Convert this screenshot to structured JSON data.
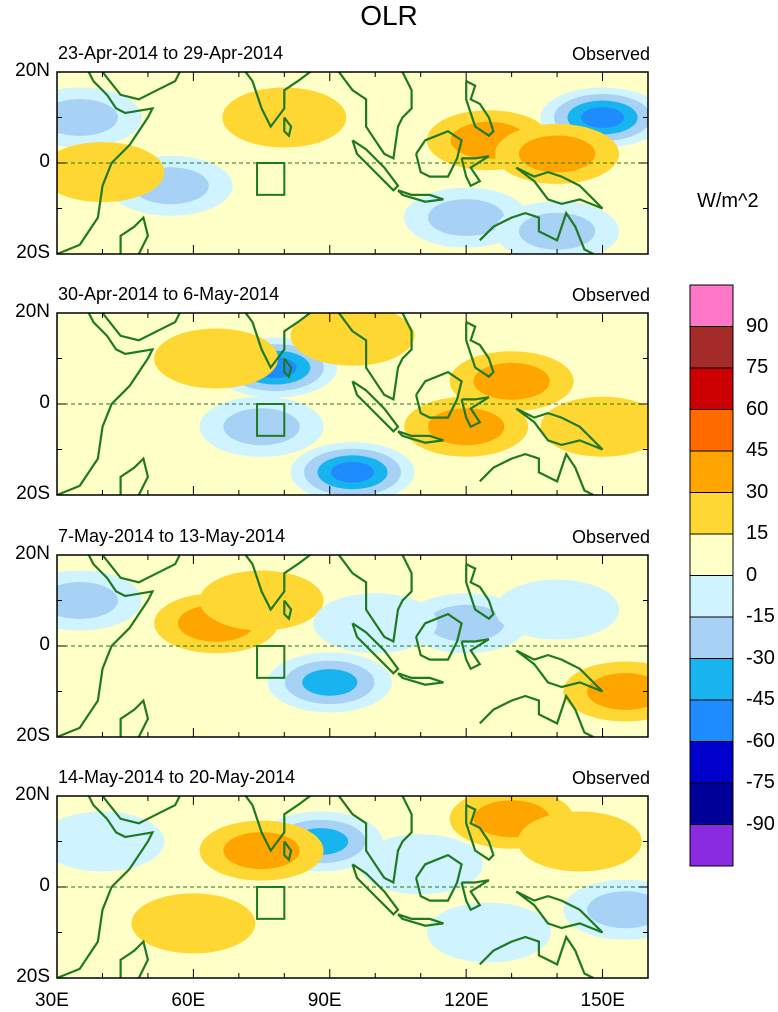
{
  "chart_data": {
    "type": "heatmap",
    "title": "OLR",
    "xlabel": "",
    "ylabel": "",
    "xlim": [
      30,
      160
    ],
    "ylim": [
      -20,
      20
    ],
    "x_ticks": [
      "30E",
      "60E",
      "90E",
      "120E",
      "150E"
    ],
    "y_ticks": [
      "20N",
      "0",
      "20S"
    ],
    "colorbar": {
      "unit": "W/m^2",
      "labels": [
        "90",
        "75",
        "60",
        "45",
        "30",
        "15",
        "0",
        "-15",
        "-30",
        "-45",
        "-60",
        "-75",
        "-90"
      ],
      "colors": [
        "#ff77c8",
        "#a52a2a",
        "#cc0000",
        "#ff6a00",
        "#ffa500",
        "#ffd732",
        "#ffffc8",
        "#cff3ff",
        "#a7d1f5",
        "#18b4f0",
        "#1e8cff",
        "#0000cc",
        "#000099",
        "#8a2be2"
      ]
    },
    "panels": [
      {
        "period": "23-Apr-2014 to 29-Apr-2014",
        "label": "Observed",
        "anomalies": [
          {
            "lon": 150,
            "lat": 10,
            "value": -70
          },
          {
            "lon": 35,
            "lat": 10,
            "value": -40
          },
          {
            "lon": 125,
            "lat": 5,
            "value": 35
          },
          {
            "lon": 140,
            "lat": 2,
            "value": 40
          },
          {
            "lon": 80,
            "lat": 10,
            "value": 15
          },
          {
            "lon": 55,
            "lat": -5,
            "value": -30
          },
          {
            "lon": 120,
            "lat": -12,
            "value": -40
          },
          {
            "lon": 140,
            "lat": -15,
            "value": -30
          },
          {
            "lon": 40,
            "lat": -2,
            "value": 20
          }
        ]
      },
      {
        "period": "30-Apr-2014 to 6-May-2014",
        "label": "Observed",
        "anomalies": [
          {
            "lon": 78,
            "lat": 8,
            "value": -70
          },
          {
            "lon": 95,
            "lat": -15,
            "value": -60
          },
          {
            "lon": 75,
            "lat": -5,
            "value": -30
          },
          {
            "lon": 130,
            "lat": 5,
            "value": 35
          },
          {
            "lon": 120,
            "lat": -5,
            "value": 30
          },
          {
            "lon": 95,
            "lat": 15,
            "value": 25
          },
          {
            "lon": 150,
            "lat": -5,
            "value": 20
          },
          {
            "lon": 65,
            "lat": 10,
            "value": 15
          }
        ]
      },
      {
        "period": "7-May-2014 to 13-May-2014",
        "label": "Observed",
        "anomalies": [
          {
            "lon": 65,
            "lat": 5,
            "value": 30
          },
          {
            "lon": 75,
            "lat": 10,
            "value": 25
          },
          {
            "lon": 90,
            "lat": -8,
            "value": -50
          },
          {
            "lon": 120,
            "lat": 5,
            "value": -30
          },
          {
            "lon": 140,
            "lat": 8,
            "value": -20
          },
          {
            "lon": 155,
            "lat": -10,
            "value": 35
          },
          {
            "lon": 35,
            "lat": 10,
            "value": -30
          },
          {
            "lon": 100,
            "lat": 5,
            "value": -25
          }
        ]
      },
      {
        "period": "14-May-2014 to 20-May-2014",
        "label": "Observed",
        "anomalies": [
          {
            "lon": 88,
            "lat": 10,
            "value": -55
          },
          {
            "lon": 130,
            "lat": 15,
            "value": 35
          },
          {
            "lon": 145,
            "lat": 10,
            "value": 20
          },
          {
            "lon": 75,
            "lat": 8,
            "value": 40
          },
          {
            "lon": 110,
            "lat": 5,
            "value": -25
          },
          {
            "lon": 155,
            "lat": -5,
            "value": -40
          },
          {
            "lon": 60,
            "lat": -8,
            "value": 20
          },
          {
            "lon": 40,
            "lat": 10,
            "value": -20
          },
          {
            "lon": 125,
            "lat": -10,
            "value": -20
          }
        ]
      }
    ]
  }
}
